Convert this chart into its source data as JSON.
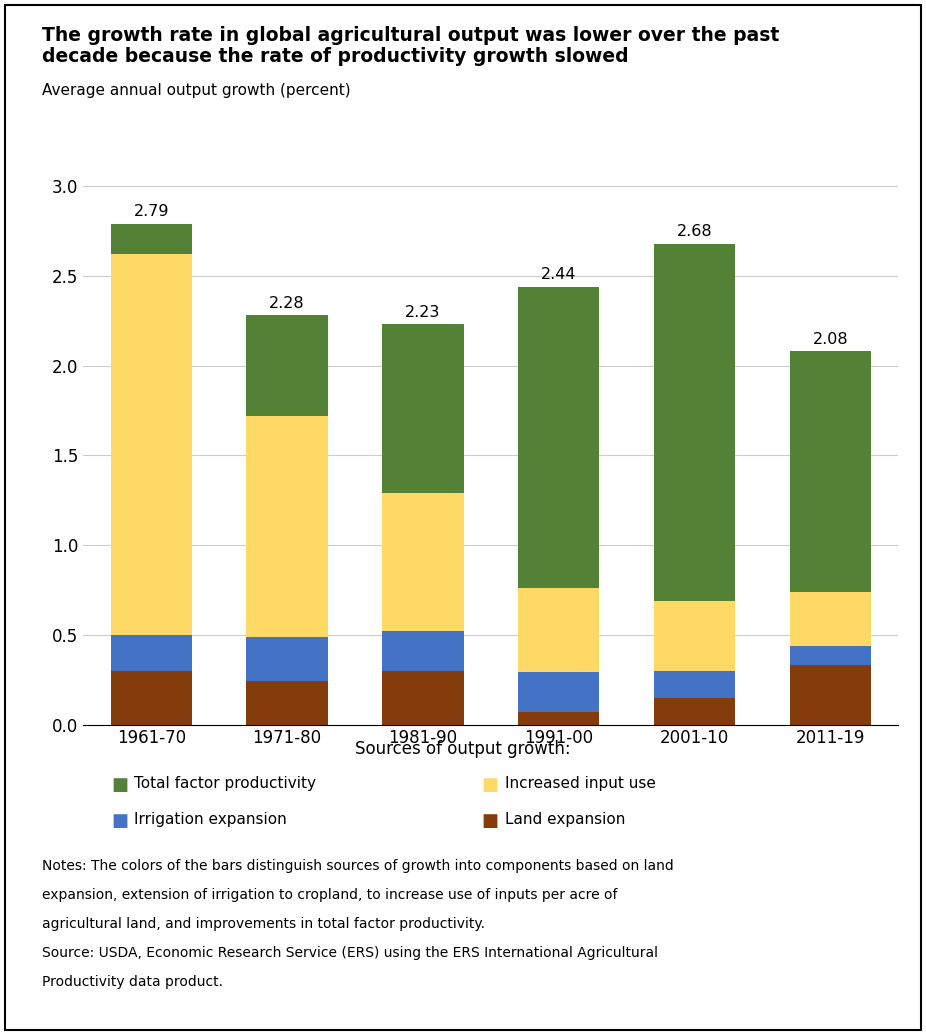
{
  "categories": [
    "1961-70",
    "1971-80",
    "1981-90",
    "1991-00",
    "2001-10",
    "2011-19"
  ],
  "totals": [
    2.79,
    2.28,
    2.23,
    2.44,
    2.68,
    2.08
  ],
  "land_expansion": [
    0.3,
    0.24,
    0.3,
    0.07,
    0.15,
    0.33
  ],
  "irrigation_expansion": [
    0.2,
    0.25,
    0.22,
    0.22,
    0.15,
    0.11
  ],
  "increased_input": [
    2.12,
    1.23,
    0.77,
    0.47,
    0.39,
    0.3
  ],
  "tfp": [
    0.17,
    0.56,
    0.94,
    1.68,
    1.99,
    1.34
  ],
  "colors": {
    "land_expansion": "#843C0C",
    "irrigation_expansion": "#4472C4",
    "increased_input": "#FFD966",
    "tfp": "#538135"
  },
  "title_line1": "The growth rate in global agricultural output was lower over the past",
  "title_line2": "decade because the rate of productivity growth slowed",
  "ylabel": "Average annual output growth (percent)",
  "xlabel_legend": "Sources of output growth:",
  "ylim": [
    0.0,
    3.0
  ],
  "yticks": [
    0.0,
    0.5,
    1.0,
    1.5,
    2.0,
    2.5,
    3.0
  ],
  "notes_text": "Notes: The colors of the bars distinguish sources of growth into components based on land\nexpansion, extension of irrigation to cropland, to increase use of inputs per acre of\nagricultural land, and improvements in total factor productivity.\nSource: USDA, Economic Research Service (ERS) using the ERS International Agricultural\nProductivity data product.",
  "background_color": "#FFFFFF"
}
